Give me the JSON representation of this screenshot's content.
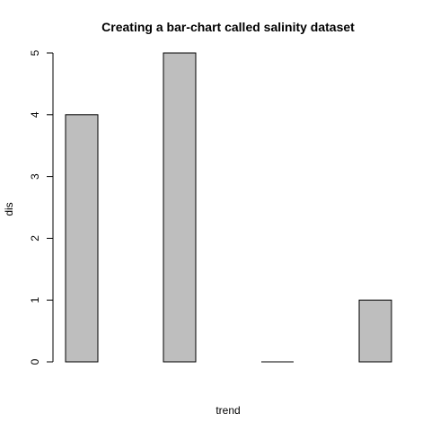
{
  "chart_data": {
    "type": "bar",
    "title": "Creating a bar-chart called salinity dataset",
    "xlabel": "trend",
    "ylabel": "dis",
    "categories": [
      "",
      "",
      "",
      ""
    ],
    "values": [
      4,
      5,
      0,
      1
    ],
    "yticks": [
      "0",
      "1",
      "2",
      "3",
      "4",
      "5"
    ],
    "ylim": [
      0,
      5
    ],
    "grid": false,
    "legend": "none",
    "bar_fill": "#bebebe",
    "bar_stroke": "#000000"
  }
}
